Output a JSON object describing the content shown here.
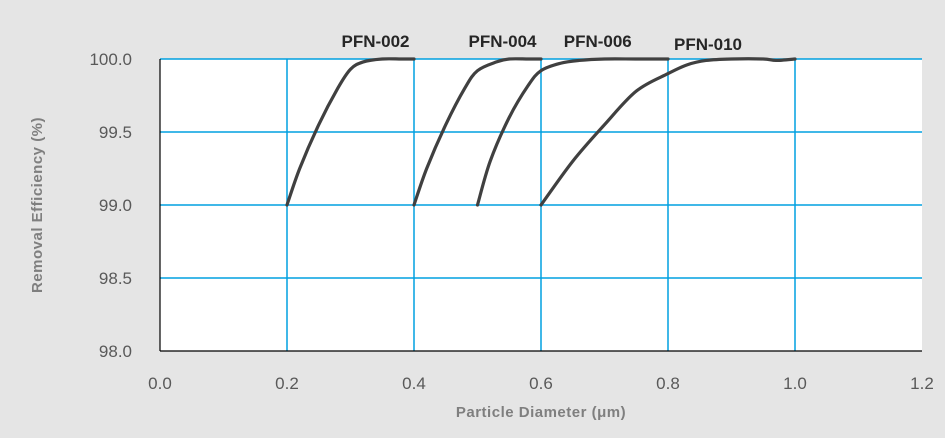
{
  "chart_data": {
    "type": "line",
    "title": "",
    "xlabel": "Particle  Diameter  (μm)",
    "ylabel": "Removal Efficiency (%)",
    "xlim": [
      0.0,
      1.2
    ],
    "ylim": [
      98.0,
      100.0
    ],
    "x_ticks": [
      "0.0",
      "0.2",
      "0.4",
      "0.6",
      "0.8",
      "1.0",
      "1.2"
    ],
    "y_ticks": [
      "98.0",
      "98.5",
      "99.0",
      "99.5",
      "100.0"
    ],
    "grid": true,
    "legend": "inline labels above curves",
    "colors": {
      "background": "#e5e5e5",
      "plot_area": "#ffffff",
      "grid": "#00a0e0",
      "line": "#404040",
      "axis": "#000000"
    },
    "series": [
      {
        "name": "PFN-002",
        "x": [
          0.2,
          0.22,
          0.25,
          0.28,
          0.3,
          0.32,
          0.35,
          0.38,
          0.4
        ],
        "y": [
          99.0,
          99.25,
          99.55,
          99.8,
          99.93,
          99.98,
          100.0,
          100.0,
          100.0
        ]
      },
      {
        "name": "PFN-004",
        "x": [
          0.4,
          0.42,
          0.45,
          0.48,
          0.5,
          0.53,
          0.55,
          0.58,
          0.6
        ],
        "y": [
          99.0,
          99.25,
          99.55,
          99.8,
          99.92,
          99.98,
          100.0,
          100.0,
          100.0
        ]
      },
      {
        "name": "PFN-006",
        "x": [
          0.5,
          0.52,
          0.55,
          0.58,
          0.6,
          0.63,
          0.66,
          0.7,
          0.75,
          0.8
        ],
        "y": [
          99.0,
          99.3,
          99.6,
          99.82,
          99.92,
          99.97,
          99.99,
          100.0,
          100.0,
          100.0
        ]
      },
      {
        "name": "PFN-010",
        "x": [
          0.6,
          0.65,
          0.7,
          0.75,
          0.8,
          0.83,
          0.86,
          0.9,
          0.95,
          0.97,
          1.0
        ],
        "y": [
          99.0,
          99.3,
          99.55,
          99.78,
          99.9,
          99.96,
          99.99,
          100.0,
          100.0,
          99.99,
          100.0
        ]
      }
    ]
  }
}
